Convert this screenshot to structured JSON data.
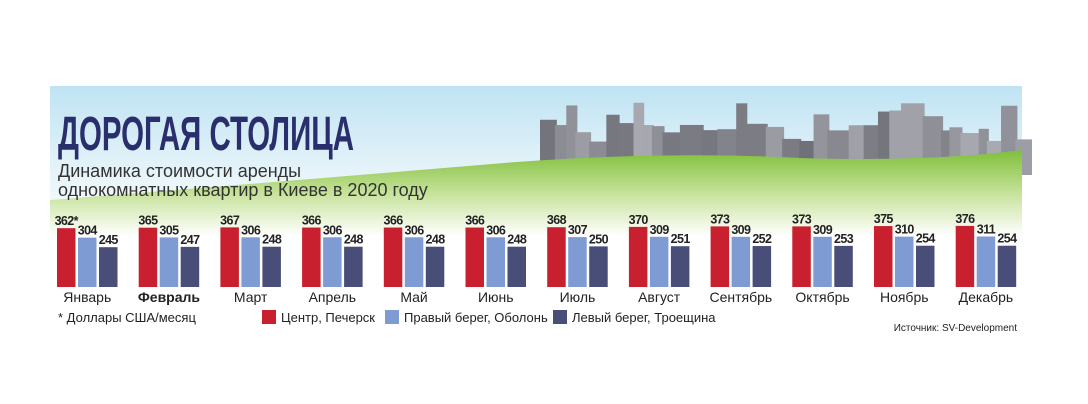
{
  "chart_data": {
    "type": "bar",
    "title": "ДОРОГАЯ СТОЛИЦА",
    "subtitle": [
      "Динамика стоимости аренды",
      "однокомнатных квартир в Киеве в 2020 году"
    ],
    "categories": [
      "Январь",
      "Февраль",
      "Март",
      "Апрель",
      "Май",
      "Июнь",
      "Июль",
      "Август",
      "Сентябрь",
      "Октябрь",
      "Ноябрь",
      "Декабрь"
    ],
    "highlight_category": "Февраль",
    "series": [
      {
        "name": "Центр, Печерск",
        "color": "#c9202f",
        "values": [
          362,
          365,
          367,
          366,
          366,
          366,
          368,
          370,
          373,
          373,
          375,
          376
        ],
        "value_labels": [
          "362*",
          "365",
          "367",
          "366",
          "366",
          "366",
          "368",
          "370",
          "373",
          "373",
          "375",
          "376"
        ]
      },
      {
        "name": "Правый берег, Оболонь",
        "color": "#7f9bd4",
        "values": [
          304,
          305,
          306,
          306,
          306,
          306,
          307,
          309,
          309,
          309,
          310,
          311
        ]
      },
      {
        "name": "Левый берег, Троещина",
        "color": "#494e78",
        "values": [
          245,
          247,
          248,
          248,
          248,
          248,
          250,
          251,
          252,
          253,
          254,
          254
        ]
      }
    ],
    "ylim": [
      0,
      400
    ],
    "note": "* Доллары США/месяц",
    "source": "Источник: SV-Development"
  }
}
